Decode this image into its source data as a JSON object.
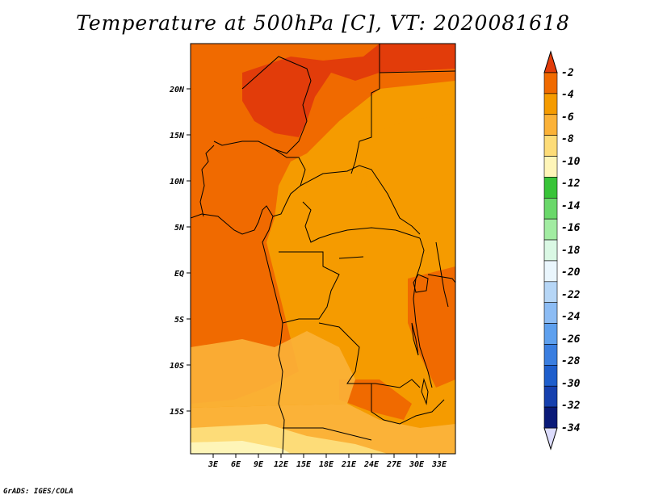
{
  "title": "Temperature at 500hPa [C], VT: 2020081618",
  "credit": "GrADS: IGES/COLA",
  "lat_labels": [
    "20N",
    "15N",
    "10N",
    "5N",
    "EQ",
    "5S",
    "10S",
    "15S"
  ],
  "lon_labels": [
    "3E",
    "6E",
    "9E",
    "12E",
    "15E",
    "18E",
    "21E",
    "24E",
    "27E",
    "30E",
    "33E"
  ],
  "colorbar": {
    "labels": [
      "-2",
      "-4",
      "-6",
      "-8",
      "-10",
      "-12",
      "-14",
      "-16",
      "-18",
      "-20",
      "-22",
      "-24",
      "-26",
      "-28",
      "-30",
      "-32",
      "-34"
    ],
    "colors": [
      "#e23c0a",
      "#f06a00",
      "#f59b00",
      "#fbb238",
      "#fddc78",
      "#fef5b8",
      "#38c438",
      "#6ad86a",
      "#a2eca2",
      "#daf8e4",
      "#eaf6fd",
      "#b6d6f6",
      "#8cbcf4",
      "#5ea0ee",
      "#3a7ee0",
      "#1e5ecc",
      "#1640ae",
      "#0a1a78"
    ],
    "top_color": "#e23c0a",
    "bottom_color": "#dcdcfc"
  },
  "map_colors": {
    "lt_minus2": "#e23c0a",
    "minus2_minus4": "#f06a00",
    "minus4_minus6": "#f59b00",
    "minus6_minus8": "#fbb238",
    "minus8_minus10": "#fddc78",
    "border": "#000000"
  }
}
